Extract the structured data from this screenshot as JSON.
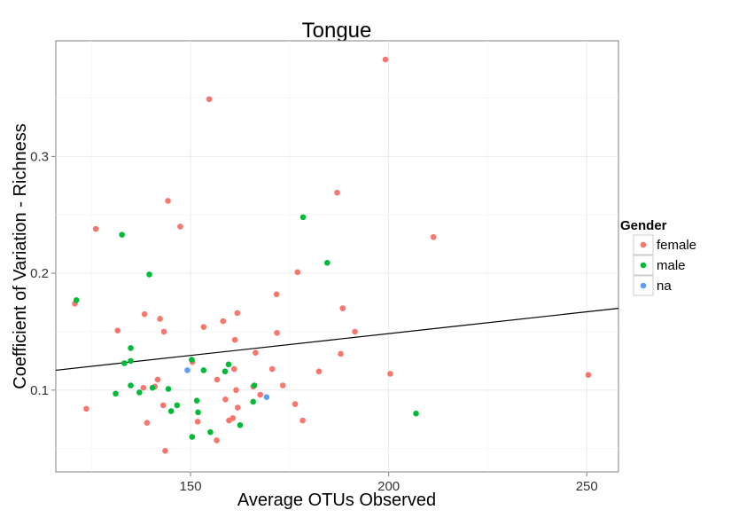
{
  "chart_data": {
    "type": "scatter",
    "title": "Tongue",
    "xlabel": "Average OTUs Observed",
    "ylabel": "Coefficient of Variation - Richness",
    "xlim": [
      116,
      258
    ],
    "ylim": [
      0.03,
      0.399
    ],
    "xticks": [
      150,
      200,
      250
    ],
    "xtick_labels": [
      "150",
      "200",
      "250"
    ],
    "yticks": [
      0.1,
      0.2,
      0.3
    ],
    "ytick_labels": [
      "0.1",
      "0.2",
      "0.3"
    ],
    "grid": true,
    "legend": {
      "title": "Gender",
      "position": "right",
      "entries": [
        {
          "label": "female",
          "color": "#F8766D"
        },
        {
          "label": "male",
          "color": "#00BA38"
        },
        {
          "label": "na",
          "color": "#619CFF"
        }
      ]
    },
    "regression_line": {
      "x": [
        116,
        258
      ],
      "y": [
        0.117,
        0.17
      ],
      "color": "#000000"
    },
    "series": [
      {
        "name": "female",
        "color": "#F8766D",
        "points": [
          [
            199.2,
            0.383
          ],
          [
            154.7,
            0.349
          ],
          [
            187.0,
            0.269
          ],
          [
            144.3,
            0.262
          ],
          [
            147.4,
            0.24
          ],
          [
            126.1,
            0.238
          ],
          [
            211.3,
            0.231
          ],
          [
            177.0,
            0.201
          ],
          [
            171.7,
            0.182
          ],
          [
            120.8,
            0.174
          ],
          [
            188.4,
            0.17
          ],
          [
            161.8,
            0.166
          ],
          [
            138.4,
            0.165
          ],
          [
            142.3,
            0.161
          ],
          [
            158.2,
            0.159
          ],
          [
            153.3,
            0.154
          ],
          [
            131.6,
            0.151
          ],
          [
            143.3,
            0.15
          ],
          [
            171.8,
            0.149
          ],
          [
            191.5,
            0.15
          ],
          [
            161.2,
            0.143
          ],
          [
            166.4,
            0.132
          ],
          [
            187.9,
            0.131
          ],
          [
            150.5,
            0.124
          ],
          [
            161.0,
            0.118
          ],
          [
            170.6,
            0.118
          ],
          [
            182.4,
            0.116
          ],
          [
            200.4,
            0.114
          ],
          [
            250.4,
            0.113
          ],
          [
            156.7,
            0.109
          ],
          [
            141.7,
            0.109
          ],
          [
            173.3,
            0.104
          ],
          [
            141.0,
            0.103
          ],
          [
            138.1,
            0.102
          ],
          [
            165.8,
            0.103
          ],
          [
            161.5,
            0.1
          ],
          [
            167.6,
            0.096
          ],
          [
            158.8,
            0.092
          ],
          [
            176.4,
            0.088
          ],
          [
            143.1,
            0.087
          ],
          [
            123.7,
            0.084
          ],
          [
            161.9,
            0.085
          ],
          [
            160.7,
            0.076
          ],
          [
            159.7,
            0.074
          ],
          [
            178.3,
            0.074
          ],
          [
            139.0,
            0.072
          ],
          [
            151.8,
            0.073
          ],
          [
            156.6,
            0.057
          ],
          [
            143.6,
            0.048
          ]
        ]
      },
      {
        "name": "male",
        "color": "#00BA38",
        "points": [
          [
            178.4,
            0.248
          ],
          [
            132.7,
            0.233
          ],
          [
            184.5,
            0.209
          ],
          [
            139.6,
            0.199
          ],
          [
            121.2,
            0.177
          ],
          [
            134.9,
            0.136
          ],
          [
            134.9,
            0.125
          ],
          [
            133.3,
            0.123
          ],
          [
            150.3,
            0.126
          ],
          [
            159.6,
            0.122
          ],
          [
            153.3,
            0.117
          ],
          [
            158.7,
            0.116
          ],
          [
            166.1,
            0.104
          ],
          [
            134.9,
            0.104
          ],
          [
            140.4,
            0.102
          ],
          [
            144.4,
            0.101
          ],
          [
            137.1,
            0.098
          ],
          [
            131.1,
            0.097
          ],
          [
            151.6,
            0.091
          ],
          [
            165.8,
            0.09
          ],
          [
            146.6,
            0.087
          ],
          [
            145.1,
            0.082
          ],
          [
            151.9,
            0.081
          ],
          [
            206.9,
            0.08
          ],
          [
            162.5,
            0.07
          ],
          [
            155.0,
            0.064
          ],
          [
            150.4,
            0.06
          ]
        ]
      },
      {
        "name": "na",
        "color": "#619CFF",
        "points": [
          [
            149.2,
            0.117
          ],
          [
            169.2,
            0.094
          ]
        ]
      }
    ]
  }
}
